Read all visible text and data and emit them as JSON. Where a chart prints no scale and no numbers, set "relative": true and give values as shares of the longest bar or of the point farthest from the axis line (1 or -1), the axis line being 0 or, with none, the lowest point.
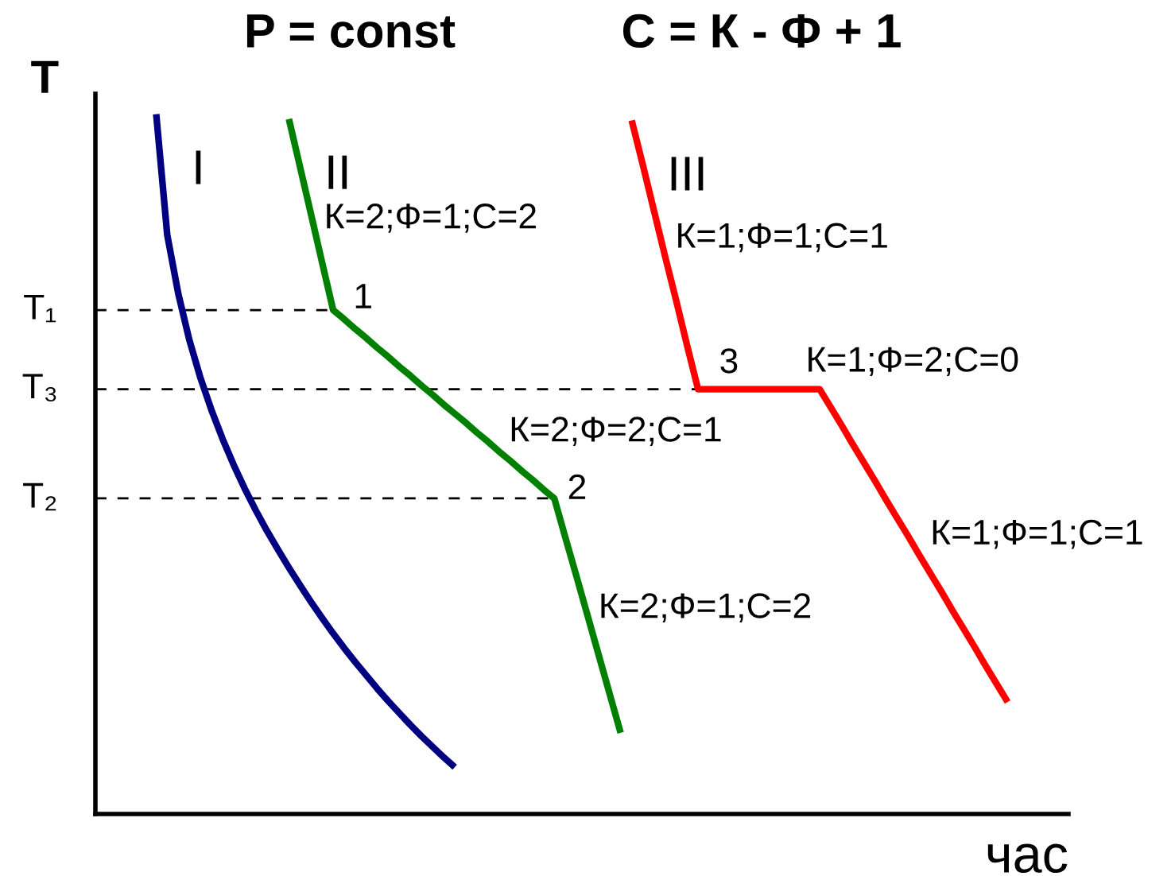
{
  "chart_data": {
    "type": "line",
    "title": "P = const",
    "subtitle": "С = К - Ф + 1",
    "xlabel": "час",
    "ylabel": "T",
    "relative": true,
    "categories": [
      null,
      null,
      null,
      null,
      null,
      null,
      null,
      null,
      null,
      null,
      null,
      null,
      null,
      null,
      null,
      null,
      null,
      null,
      null,
      null,
      null,
      null,
      null,
      null,
      null,
      null,
      null,
      null,
      null,
      null,
      null,
      null,
      null,
      null,
      null,
      null,
      null,
      null,
      null,
      null,
      null,
      null,
      null,
      null,
      null,
      null,
      null,
      null,
      null,
      null,
      null,
      null,
      null,
      null,
      null,
      null,
      null,
      null,
      null,
      null,
      null,
      null,
      null,
      null,
      null,
      null,
      null,
      null,
      null,
      null,
      null,
      null,
      null,
      null,
      null,
      null,
      null,
      null,
      null,
      null,
      null,
      null,
      null,
      null,
      null,
      null,
      null,
      null
    ],
    "series": [
      {
        "name": "I",
        "color": "#000080",
        "values": [
          null,
          null,
          null,
          null,
          null,
          1.0,
          0.827,
          0.743,
          0.677,
          0.623,
          0.577,
          0.536,
          0.499,
          0.465,
          0.434,
          0.405,
          0.378,
          0.352,
          0.327,
          0.303,
          0.28,
          0.258,
          0.237,
          0.217,
          0.198,
          0.179,
          0.161,
          0.144,
          0.127,
          0.111,
          0.096,
          0.081,
          0.067,
          null,
          null,
          null,
          null,
          null,
          null,
          null,
          null,
          null,
          null,
          null,
          null,
          null,
          null,
          null,
          null,
          null,
          null,
          null,
          null,
          null,
          null,
          null,
          null,
          null,
          null,
          null,
          null,
          null,
          null,
          null,
          null,
          null,
          null,
          null,
          null,
          null,
          null,
          null,
          null,
          null,
          null,
          null,
          null,
          null,
          null,
          null,
          null,
          null,
          null,
          null,
          null,
          null,
          null,
          null
        ]
      },
      {
        "name": "II",
        "color": "#008000",
        "values": [
          null,
          null,
          null,
          null,
          null,
          null,
          null,
          null,
          null,
          null,
          null,
          null,
          null,
          null,
          null,
          null,
          null,
          0.993,
          0.925,
          0.857,
          0.788,
          0.72,
          0.707,
          0.693,
          0.68,
          0.666,
          0.653,
          0.639,
          0.626,
          0.612,
          0.599,
          0.585,
          0.572,
          0.559,
          0.545,
          0.532,
          0.518,
          0.505,
          0.491,
          0.478,
          0.464,
          0.451,
          0.395,
          0.34,
          0.284,
          0.228,
          0.172,
          0.116,
          null,
          null,
          null,
          null,
          null,
          null,
          null,
          null,
          null,
          null,
          null,
          null,
          null,
          null,
          null,
          null,
          null,
          null,
          null,
          null,
          null,
          null,
          null,
          null,
          null,
          null,
          null,
          null,
          null,
          null,
          null,
          null,
          null,
          null,
          null,
          null,
          null,
          null,
          null,
          null
        ]
      },
      {
        "name": "III",
        "color": "#ff0000",
        "values": [
          null,
          null,
          null,
          null,
          null,
          null,
          null,
          null,
          null,
          null,
          null,
          null,
          null,
          null,
          null,
          null,
          null,
          null,
          null,
          null,
          null,
          null,
          null,
          null,
          null,
          null,
          null,
          null,
          null,
          null,
          null,
          null,
          null,
          null,
          null,
          null,
          null,
          null,
          null,
          null,
          null,
          null,
          null,
          null,
          null,
          null,
          null,
          null,
          0.991,
          0.928,
          0.863,
          0.798,
          0.735,
          0.67,
          0.607,
          0.607,
          0.607,
          0.607,
          0.607,
          0.607,
          0.607,
          0.607,
          0.607,
          0.607,
          0.607,
          0.607,
          0.581,
          0.555,
          0.528,
          0.502,
          0.476,
          0.449,
          0.423,
          0.397,
          0.37,
          0.344,
          0.318,
          0.291,
          0.265,
          0.239,
          0.212,
          0.186,
          0.16,
          null,
          null,
          null,
          null,
          null
        ]
      }
    ],
    "ref_lines": [
      {
        "axis": "y",
        "value": 0.72,
        "label": "T₁",
        "color": "#000000",
        "line_style": "dashed"
      },
      {
        "axis": "y",
        "value": 0.607,
        "label": "T₃",
        "color": "#000000",
        "line_style": "dashed"
      },
      {
        "axis": "y",
        "value": 0.451,
        "label": "T₂",
        "color": "#000000",
        "line_style": "dashed"
      }
    ],
    "annotations": [
      "1",
      "2",
      "3",
      "К=2;Ф=1;С=2",
      "К=1;Ф=1;С=1",
      "К=2;Ф=2;С=1",
      "К=1;Ф=2;С=0",
      "К=1;Ф=1;С=1",
      "К=2;Ф=1;С=2"
    ]
  }
}
